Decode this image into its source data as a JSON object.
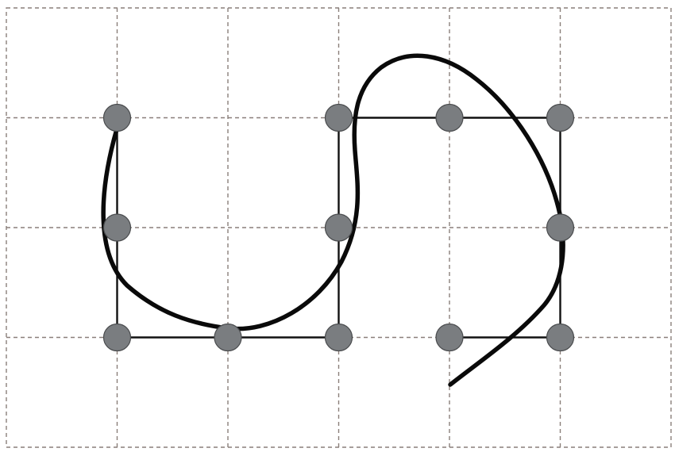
{
  "grid": {
    "columns": 6,
    "rows": 4
  },
  "colors": {
    "grid_line": "#8a7f7a",
    "segment": "#111111",
    "curve": "#0a0a0a",
    "node_fill": "#7a7d80",
    "node_stroke": "#4a4c4e"
  },
  "nodes": [
    {
      "id": "n-1-1",
      "col": 1,
      "row": 1
    },
    {
      "id": "n-1-2",
      "col": 1,
      "row": 2
    },
    {
      "id": "n-1-3",
      "col": 1,
      "row": 3
    },
    {
      "id": "n-2-3",
      "col": 2,
      "row": 3
    },
    {
      "id": "n-3-1",
      "col": 3,
      "row": 1
    },
    {
      "id": "n-3-2",
      "col": 3,
      "row": 2
    },
    {
      "id": "n-3-3",
      "col": 3,
      "row": 3
    },
    {
      "id": "n-4-1",
      "col": 4,
      "row": 1
    },
    {
      "id": "n-4-3",
      "col": 4,
      "row": 3
    },
    {
      "id": "n-5-1",
      "col": 5,
      "row": 1
    },
    {
      "id": "n-5-2",
      "col": 5,
      "row": 2
    },
    {
      "id": "n-5-3",
      "col": 5,
      "row": 3
    }
  ],
  "segments": [
    {
      "from": [
        1,
        1
      ],
      "to": [
        1,
        3
      ]
    },
    {
      "from": [
        1,
        3
      ],
      "to": [
        3,
        3
      ]
    },
    {
      "from": [
        3,
        1
      ],
      "to": [
        3,
        3
      ]
    },
    {
      "from": [
        3,
        1
      ],
      "to": [
        5,
        1
      ]
    },
    {
      "from": [
        5,
        1
      ],
      "to": [
        5,
        3
      ]
    },
    {
      "from": [
        4,
        3
      ],
      "to": [
        5,
        3
      ]
    }
  ]
}
